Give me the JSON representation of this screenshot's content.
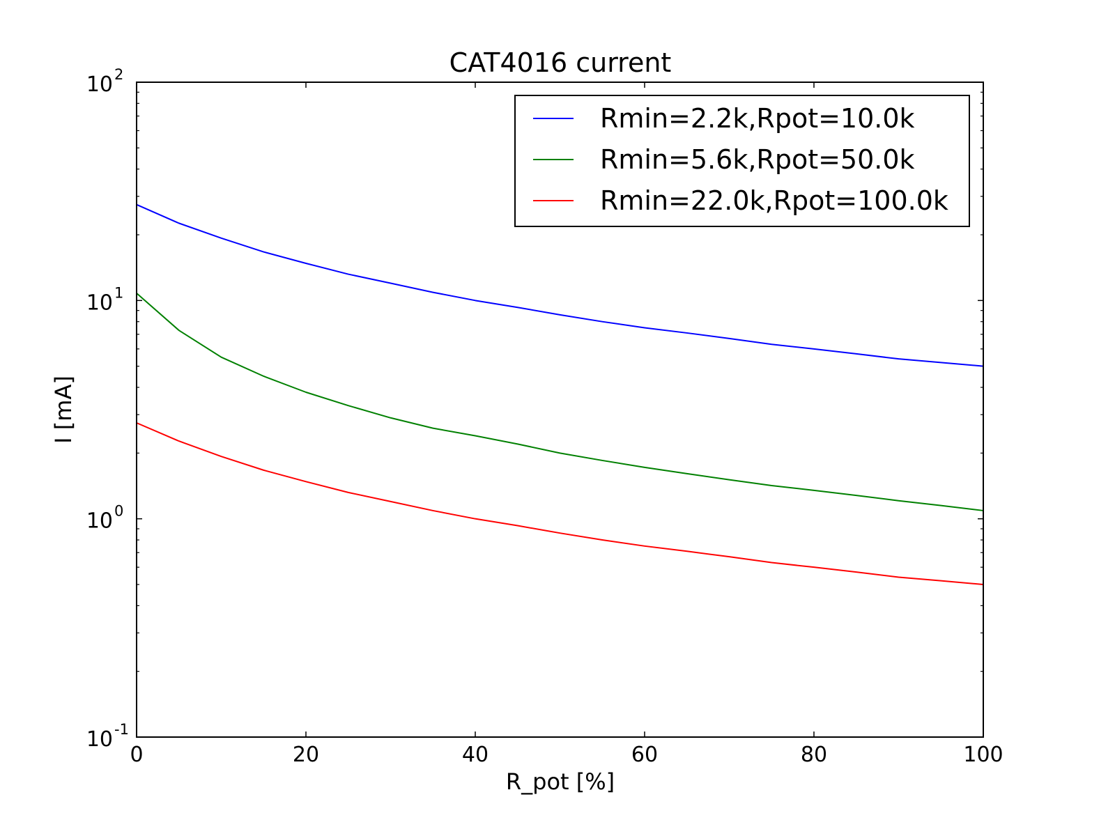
{
  "chart_data": {
    "type": "line",
    "title": "CAT4016 current",
    "xlabel": "R_pot [%]",
    "ylabel": "I [mA]",
    "xlim": [
      0,
      100
    ],
    "ylim": [
      0.1,
      100
    ],
    "yscale": "log",
    "grid": false,
    "legend_position": "top-right",
    "x_ticks": [
      0,
      20,
      40,
      60,
      80,
      100
    ],
    "x_tick_labels": [
      "0",
      "20",
      "40",
      "60",
      "80",
      "100"
    ],
    "y_ticks": [
      0.1,
      1,
      10,
      100
    ],
    "y_tick_labels": [
      {
        "base": "10",
        "exp": "-1"
      },
      {
        "base": "10",
        "exp": "0"
      },
      {
        "base": "10",
        "exp": "1"
      },
      {
        "base": "10",
        "exp": "2"
      }
    ],
    "x": [
      0,
      5,
      10,
      15,
      20,
      25,
      30,
      35,
      40,
      45,
      50,
      55,
      60,
      65,
      70,
      75,
      80,
      85,
      90,
      95,
      100
    ],
    "series": [
      {
        "name": "Rmin=2.2k,Rpot=10.0k",
        "color": "#0000ff",
        "values": [
          27.5,
          22.6,
          19.3,
          16.7,
          14.8,
          13.2,
          12.0,
          10.9,
          10.0,
          9.3,
          8.6,
          8.0,
          7.5,
          7.1,
          6.7,
          6.3,
          6.0,
          5.7,
          5.4,
          5.2,
          5.0
        ]
      },
      {
        "name": "Rmin=5.6k,Rpot=50.0k",
        "color": "#008000",
        "values": [
          10.8,
          7.3,
          5.5,
          4.5,
          3.8,
          3.3,
          2.9,
          2.6,
          2.4,
          2.2,
          2.0,
          1.85,
          1.72,
          1.61,
          1.51,
          1.42,
          1.35,
          1.28,
          1.21,
          1.15,
          1.09
        ]
      },
      {
        "name": "Rmin=22.0k,Rpot=100.0k",
        "color": "#ff0000",
        "values": [
          2.75,
          2.27,
          1.93,
          1.67,
          1.48,
          1.32,
          1.2,
          1.09,
          1.0,
          0.93,
          0.86,
          0.8,
          0.75,
          0.71,
          0.67,
          0.63,
          0.6,
          0.57,
          0.54,
          0.52,
          0.5
        ]
      }
    ]
  }
}
